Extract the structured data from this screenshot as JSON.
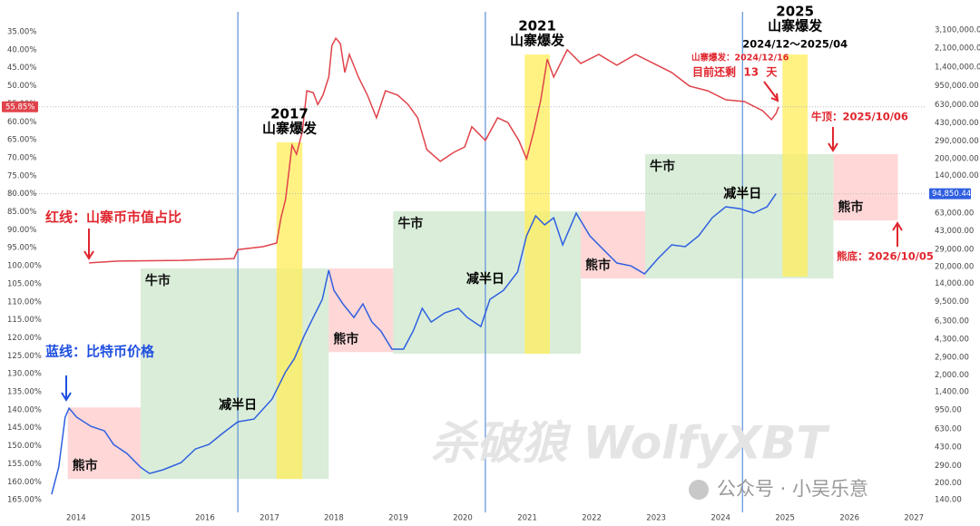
{
  "chart_data": {
    "type": "line",
    "xlim": [
      2012.96,
      2027.18
    ],
    "xticks": [
      2014,
      2015,
      2016,
      2017,
      2018,
      2019,
      2020,
      2021,
      2022,
      2023,
      2024,
      2025,
      2026,
      2027
    ],
    "ylim": [
      168.5,
      28.7
    ],
    "yticks": [
      {
        "value": 35,
        "label": "35.00%"
      },
      {
        "value": 40,
        "label": "40.00%"
      },
      {
        "value": 45,
        "label": "45.00%"
      },
      {
        "value": 50,
        "label": "50.00%"
      },
      {
        "value": 55,
        "label": "55.00%"
      },
      {
        "value": 60,
        "label": "60.00%"
      },
      {
        "value": 65,
        "label": "65.00%"
      },
      {
        "value": 70,
        "label": "70.00%"
      },
      {
        "value": 75,
        "label": "75.00%"
      },
      {
        "value": 80,
        "label": "80.00%"
      },
      {
        "value": 85,
        "label": "85.00%"
      },
      {
        "value": 90,
        "label": "90.00%"
      },
      {
        "value": 95,
        "label": "95.00%"
      },
      {
        "value": 100,
        "label": "100.00%"
      },
      {
        "value": 105,
        "label": "105.00%"
      },
      {
        "value": 110,
        "label": "110.00%"
      },
      {
        "value": 115,
        "label": "115.00%"
      },
      {
        "value": 120,
        "label": "120.00%"
      },
      {
        "value": 125,
        "label": "125.00%"
      },
      {
        "value": 130,
        "label": "130.00%"
      },
      {
        "value": 135,
        "label": "135.00%"
      },
      {
        "value": 140,
        "label": "140.00%"
      },
      {
        "value": 145,
        "label": "145.00%"
      },
      {
        "value": 150,
        "label": "150.00%"
      },
      {
        "value": 155,
        "label": "155.00%"
      },
      {
        "value": 160,
        "label": "160.00%"
      },
      {
        "value": 165,
        "label": "165.00%"
      }
    ],
    "y2lim": [
      107,
      4840000
    ],
    "y2_log": true,
    "y2ticks": [
      {
        "value": 3100000,
        "label": "3,100,000.00"
      },
      {
        "value": 2100000,
        "label": "2,100,000.00"
      },
      {
        "value": 1400000,
        "label": "1,400,000.00"
      },
      {
        "value": 950000,
        "label": "950,000.00"
      },
      {
        "value": 630000,
        "label": "630,000.00"
      },
      {
        "value": 430000,
        "label": "430,000.00"
      },
      {
        "value": 290000,
        "label": "290,000.00"
      },
      {
        "value": 200000,
        "label": "200,000.00"
      },
      {
        "value": 140000,
        "label": "140,000.00"
      },
      {
        "value": 63000,
        "label": "63,000.00"
      },
      {
        "value": 43000,
        "label": "43,000.00"
      },
      {
        "value": 29000,
        "label": "29,000.00"
      },
      {
        "value": 20000,
        "label": "20,000.00"
      },
      {
        "value": 14000,
        "label": "14,000.00"
      },
      {
        "value": 9500,
        "label": "9,500.00"
      },
      {
        "value": 6300,
        "label": "6,300.00"
      },
      {
        "value": 4300,
        "label": "4,300.00"
      },
      {
        "value": 2900,
        "label": "2,900.00"
      },
      {
        "value": 2000,
        "label": "2,000.00"
      },
      {
        "value": 1400,
        "label": "1,400.00"
      },
      {
        "value": 950,
        "label": "950.00"
      },
      {
        "value": 630,
        "label": "630.00"
      },
      {
        "value": 430,
        "label": "430.00"
      },
      {
        "value": 290,
        "label": "290.00"
      },
      {
        "value": 200,
        "label": "200.00"
      },
      {
        "value": 140,
        "label": "140.00"
      }
    ],
    "series": [
      {
        "name": "红线：山寨币市值占比",
        "color": "#e0434b",
        "x": [
          2014.2,
          2014.65,
          2015.63,
          2016.45,
          2016.51,
          2016.9,
          2017.11,
          2017.18,
          2017.25,
          2017.3,
          2017.35,
          2017.42,
          2017.51,
          2017.58,
          2017.68,
          2017.75,
          2017.83,
          2017.92,
          2017.97,
          2018.03,
          2018.1,
          2018.17,
          2018.24,
          2018.38,
          2018.52,
          2018.66,
          2018.8,
          2018.99,
          2019.15,
          2019.3,
          2019.44,
          2019.65,
          2019.86,
          2020.03,
          2020.14,
          2020.35,
          2020.54,
          2020.7,
          2020.87,
          2020.99,
          2021.1,
          2021.21,
          2021.31,
          2021.41,
          2021.62,
          2021.83,
          2022.11,
          2022.39,
          2022.68,
          2022.96,
          2023.24,
          2023.52,
          2023.8,
          2024.08,
          2024.37,
          2024.65,
          2024.79,
          2024.86,
          2024.9
        ],
        "values": [
          99.2,
          98.7,
          98.5,
          98.0,
          95.5,
          94.7,
          93.7,
          86.6,
          81.6,
          74.0,
          66.5,
          69.0,
          62.7,
          51.4,
          51.9,
          55.2,
          52.6,
          47.6,
          38.8,
          36.8,
          38.3,
          46.3,
          41.3,
          47.6,
          52.6,
          58.9,
          51.4,
          52.6,
          55.2,
          58.9,
          67.7,
          71.0,
          68.5,
          67.0,
          61.4,
          65.2,
          58.9,
          60.2,
          65.2,
          70.3,
          62.7,
          53.9,
          42.6,
          47.6,
          40.0,
          43.8,
          41.3,
          44.3,
          41.3,
          43.8,
          46.3,
          50.1,
          51.4,
          53.9,
          54.4,
          56.9,
          59.4,
          57.7,
          55.85
        ],
        "last_label": {
          "value": 55.85,
          "label": "55.85%"
        }
      },
      {
        "name": "蓝线：比特币价格",
        "color": "#2f5fe0",
        "axis": "y2",
        "x": [
          2013.62,
          2013.73,
          2013.83,
          2013.89,
          2014.01,
          2014.23,
          2014.44,
          2014.58,
          2014.79,
          2015.0,
          2015.14,
          2015.35,
          2015.63,
          2015.85,
          2016.06,
          2016.27,
          2016.51,
          2016.76,
          2017.04,
          2017.25,
          2017.39,
          2017.54,
          2017.68,
          2017.82,
          2017.92,
          2018.0,
          2018.14,
          2018.31,
          2018.45,
          2018.59,
          2018.73,
          2018.9,
          2019.08,
          2019.23,
          2019.37,
          2019.51,
          2019.72,
          2019.93,
          2020.07,
          2020.28,
          2020.42,
          2020.63,
          2020.85,
          2020.99,
          2021.13,
          2021.27,
          2021.41,
          2021.55,
          2021.76,
          2021.97,
          2022.18,
          2022.39,
          2022.61,
          2022.82,
          2023.03,
          2023.24,
          2023.45,
          2023.66,
          2023.87,
          2024.08,
          2024.3,
          2024.51,
          2024.72,
          2024.86
        ],
        "values": [
          157,
          280,
          812,
          985,
          812,
          669,
          608,
          455,
          375,
          280,
          245,
          265,
          309,
          413,
          455,
          574,
          737,
          781,
          1195,
          2130,
          2850,
          4620,
          6790,
          10000,
          18600,
          12100,
          9080,
          6790,
          9080,
          6170,
          5080,
          3460,
          3460,
          5080,
          8250,
          6170,
          7490,
          8250,
          6790,
          5600,
          10000,
          12100,
          17900,
          38700,
          59100,
          48800,
          56900,
          31900,
          62700,
          38700,
          28900,
          21700,
          20400,
          17200,
          23900,
          31900,
          30700,
          38700,
          56900,
          71800,
          69000,
          62700,
          71800,
          94850.44
        ],
        "last_label": {
          "value": 94850.44,
          "label": "94,850.44"
        }
      }
    ],
    "zones": [
      {
        "label": "熊市",
        "kind": "bear",
        "x": [
          2013.87,
          2015.0
        ],
        "y2": [
          218,
          1000
        ]
      },
      {
        "label": "牛市",
        "kind": "bull",
        "x": [
          2015.0,
          2017.92
        ],
        "y2": [
          218,
          19300
        ]
      },
      {
        "label": "熊市",
        "kind": "bear",
        "x": [
          2017.92,
          2018.92
        ],
        "y2": [
          3250,
          19300
        ]
      },
      {
        "label": "牛市",
        "kind": "bull",
        "x": [
          2018.92,
          2021.83
        ],
        "y2": [
          3140,
          65200
        ]
      },
      {
        "label": "熊市",
        "kind": "bear",
        "x": [
          2021.83,
          2022.83
        ],
        "y2": [
          15600,
          65200
        ]
      },
      {
        "label": "牛市",
        "kind": "bull",
        "x": [
          2022.83,
          2025.75
        ],
        "y2": [
          15600,
          220000
        ]
      },
      {
        "label": "熊市",
        "kind": "bear",
        "x": [
          2025.75,
          2026.75
        ],
        "y2": [
          53600,
          220000
        ]
      }
    ],
    "bursts": [
      {
        "year": "2017",
        "label": "山寨爆发",
        "x": [
          2017.11,
          2017.51
        ],
        "y2": [
          218,
          283000
        ]
      },
      {
        "year": "2021",
        "label": "山寨爆发",
        "x": [
          2020.96,
          2021.35
        ],
        "y2": [
          3140,
          1840000
        ]
      },
      {
        "year": "2025",
        "label": "山寨爆发",
        "period": "2024/12～2025/04",
        "x": [
          2024.96,
          2025.35
        ],
        "y2": [
          16200,
          1840000
        ]
      }
    ],
    "halvings": [
      {
        "x": 2016.51,
        "label": "减半日"
      },
      {
        "x": 2020.35,
        "label": "减半日"
      },
      {
        "x": 2024.34,
        "label": "减半日"
      }
    ],
    "countdown_date": "山寨爆发：2024/12/16",
    "countdown": "目前还剩  13  天",
    "bull_top": "牛顶：2025/10/06",
    "bear_bottom": "熊底：2026/10/05",
    "watermark": "杀破狼  WolfyXBT",
    "source": "公众号 · 小吴乐意"
  }
}
